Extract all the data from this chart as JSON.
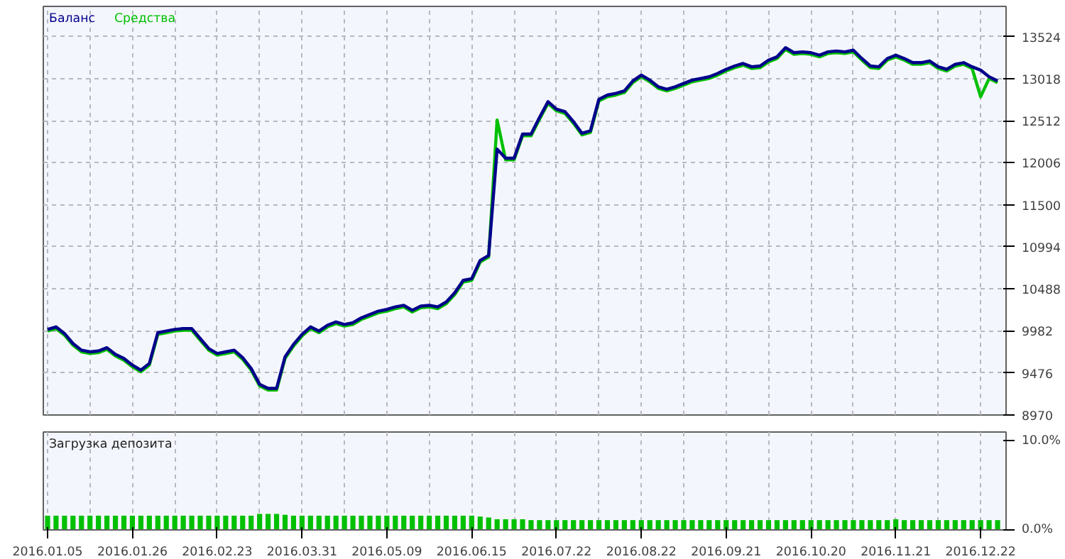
{
  "chart_data": [
    {
      "type": "line",
      "ylim": [
        8970,
        13887
      ],
      "categories": [
        "2016.01.05",
        null,
        null,
        null,
        null,
        null,
        null,
        null,
        null,
        null,
        "2016.01.26",
        null,
        null,
        null,
        null,
        null,
        null,
        null,
        null,
        null,
        "2016.02.23",
        null,
        null,
        null,
        null,
        null,
        null,
        null,
        null,
        null,
        "2016.03.31",
        null,
        null,
        null,
        null,
        null,
        null,
        null,
        null,
        null,
        "2016.05.09",
        null,
        null,
        null,
        null,
        null,
        null,
        null,
        null,
        null,
        "2016.06.15",
        null,
        null,
        null,
        null,
        null,
        null,
        null,
        null,
        null,
        "2016.07.22",
        null,
        null,
        null,
        null,
        null,
        null,
        null,
        null,
        null,
        "2016.08.22",
        null,
        null,
        null,
        null,
        null,
        null,
        null,
        null,
        null,
        "2016.09.21",
        null,
        null,
        null,
        null,
        null,
        null,
        null,
        null,
        null,
        "2016.10.20",
        null,
        null,
        null,
        null,
        null,
        null,
        null,
        null,
        null,
        "2016.11.21",
        null,
        null,
        null,
        null,
        null,
        null,
        null,
        null,
        null,
        "2016.12.22",
        null,
        null
      ],
      "yticks": [
        8970,
        9476,
        9982,
        10488,
        10994,
        11500,
        12006,
        12512,
        13018,
        13524
      ],
      "tick_labels": "y",
      "grid": true,
      "legend": "top left",
      "series": [
        {
          "name": "Средства",
          "color": "#00c000",
          "values": [
            9980,
            10010,
            9930,
            9810,
            9730,
            9710,
            9720,
            9760,
            9680,
            9630,
            9550,
            9490,
            9570,
            9940,
            9960,
            9980,
            9990,
            9990,
            9870,
            9750,
            9690,
            9710,
            9730,
            9640,
            9510,
            9320,
            9270,
            9270,
            9650,
            9800,
            9920,
            10010,
            9960,
            10030,
            10070,
            10040,
            10060,
            10120,
            10160,
            10200,
            10220,
            10250,
            10270,
            10210,
            10260,
            10270,
            10250,
            10310,
            10420,
            10570,
            10590,
            10810,
            10870,
            12520,
            12040,
            12040,
            12330,
            12330,
            12530,
            12720,
            12630,
            12600,
            12480,
            12340,
            12370,
            12750,
            12800,
            12820,
            12850,
            12970,
            13040,
            12980,
            12900,
            12870,
            12900,
            12940,
            12980,
            13000,
            13020,
            13060,
            13110,
            13150,
            13180,
            13140,
            13150,
            13220,
            13260,
            13370,
            13310,
            13320,
            13310,
            13280,
            13320,
            13330,
            13320,
            13340,
            13240,
            13150,
            13140,
            13240,
            13280,
            13240,
            13190,
            13190,
            13210,
            13140,
            13110,
            13170,
            13190,
            13140,
            12800,
            13020,
            12970
          ]
        },
        {
          "name": "Баланс",
          "color": "#00008b",
          "values": [
            10000,
            10030,
            9950,
            9830,
            9750,
            9730,
            9740,
            9780,
            9700,
            9650,
            9570,
            9510,
            9590,
            9960,
            9980,
            10000,
            10010,
            10010,
            9890,
            9770,
            9710,
            9730,
            9750,
            9660,
            9530,
            9340,
            9290,
            9290,
            9670,
            9820,
            9940,
            10030,
            9980,
            10050,
            10090,
            10060,
            10080,
            10140,
            10180,
            10220,
            10240,
            10270,
            10290,
            10230,
            10280,
            10290,
            10270,
            10330,
            10440,
            10590,
            10610,
            10830,
            10890,
            12170,
            12060,
            12060,
            12350,
            12350,
            12550,
            12740,
            12650,
            12620,
            12500,
            12360,
            12390,
            12770,
            12820,
            12840,
            12870,
            12990,
            13060,
            13000,
            12920,
            12890,
            12920,
            12960,
            13000,
            13020,
            13040,
            13080,
            13130,
            13170,
            13200,
            13160,
            13170,
            13240,
            13280,
            13390,
            13330,
            13340,
            13330,
            13300,
            13340,
            13350,
            13340,
            13360,
            13260,
            13170,
            13160,
            13260,
            13300,
            13260,
            13210,
            13210,
            13230,
            13160,
            13130,
            13190,
            13210,
            13160,
            13120,
            13040,
            12990
          ]
        }
      ]
    },
    {
      "type": "bar",
      "title": "Загрузка депозита",
      "ylim": [
        0,
        11
      ],
      "categories": [
        "2016.01.05",
        null,
        null,
        null,
        null,
        null,
        null,
        null,
        null,
        null,
        "2016.01.26",
        null,
        null,
        null,
        null,
        null,
        null,
        null,
        null,
        null,
        "2016.02.23",
        null,
        null,
        null,
        null,
        null,
        null,
        null,
        null,
        null,
        "2016.03.31",
        null,
        null,
        null,
        null,
        null,
        null,
        null,
        null,
        null,
        "2016.05.09",
        null,
        null,
        null,
        null,
        null,
        null,
        null,
        null,
        null,
        "2016.06.15",
        null,
        null,
        null,
        null,
        null,
        null,
        null,
        null,
        null,
        "2016.07.22",
        null,
        null,
        null,
        null,
        null,
        null,
        null,
        null,
        null,
        "2016.08.22",
        null,
        null,
        null,
        null,
        null,
        null,
        null,
        null,
        null,
        "2016.09.21",
        null,
        null,
        null,
        null,
        null,
        null,
        null,
        null,
        null,
        "2016.10.20",
        null,
        null,
        null,
        null,
        null,
        null,
        null,
        null,
        null,
        "2016.11.21",
        null,
        null,
        null,
        null,
        null,
        null,
        null,
        null,
        null,
        "2016.12.22",
        null,
        null
      ],
      "yticks": [
        {
          "value": 0,
          "label": "0.0%"
        },
        {
          "value": 10,
          "label": "10.0%"
        }
      ],
      "grid": "x",
      "series": [
        {
          "color": "#00c000",
          "values": [
            1.6,
            1.6,
            1.6,
            1.6,
            1.6,
            1.6,
            1.6,
            1.6,
            1.6,
            1.6,
            1.6,
            1.6,
            1.6,
            1.6,
            1.6,
            1.6,
            1.6,
            1.6,
            1.6,
            1.6,
            1.6,
            1.6,
            1.6,
            1.6,
            1.6,
            1.8,
            1.8,
            1.8,
            1.7,
            1.6,
            1.6,
            1.6,
            1.6,
            1.6,
            1.6,
            1.6,
            1.6,
            1.6,
            1.6,
            1.6,
            1.6,
            1.6,
            1.6,
            1.6,
            1.6,
            1.6,
            1.6,
            1.6,
            1.6,
            1.6,
            1.6,
            1.5,
            1.4,
            1.2,
            1.2,
            1.2,
            1.2,
            1.1,
            1.1,
            1.1,
            1.1,
            1.1,
            1.1,
            1.1,
            1.1,
            1.1,
            1.1,
            1.1,
            1.1,
            1.1,
            1.1,
            1.1,
            1.1,
            1.1,
            1.1,
            1.1,
            1.1,
            1.1,
            1.1,
            1.1,
            1.1,
            1.1,
            1.1,
            1.1,
            1.1,
            1.1,
            1.1,
            1.1,
            1.1,
            1.1,
            1.1,
            1.1,
            1.1,
            1.1,
            1.1,
            1.1,
            1.1,
            1.1,
            1.1,
            1.1,
            1.2,
            1.1,
            1.1,
            1.1,
            1.1,
            1.1,
            1.1,
            1.1,
            1.1,
            1.1,
            1.1,
            1.1,
            1.1
          ]
        }
      ]
    }
  ]
}
